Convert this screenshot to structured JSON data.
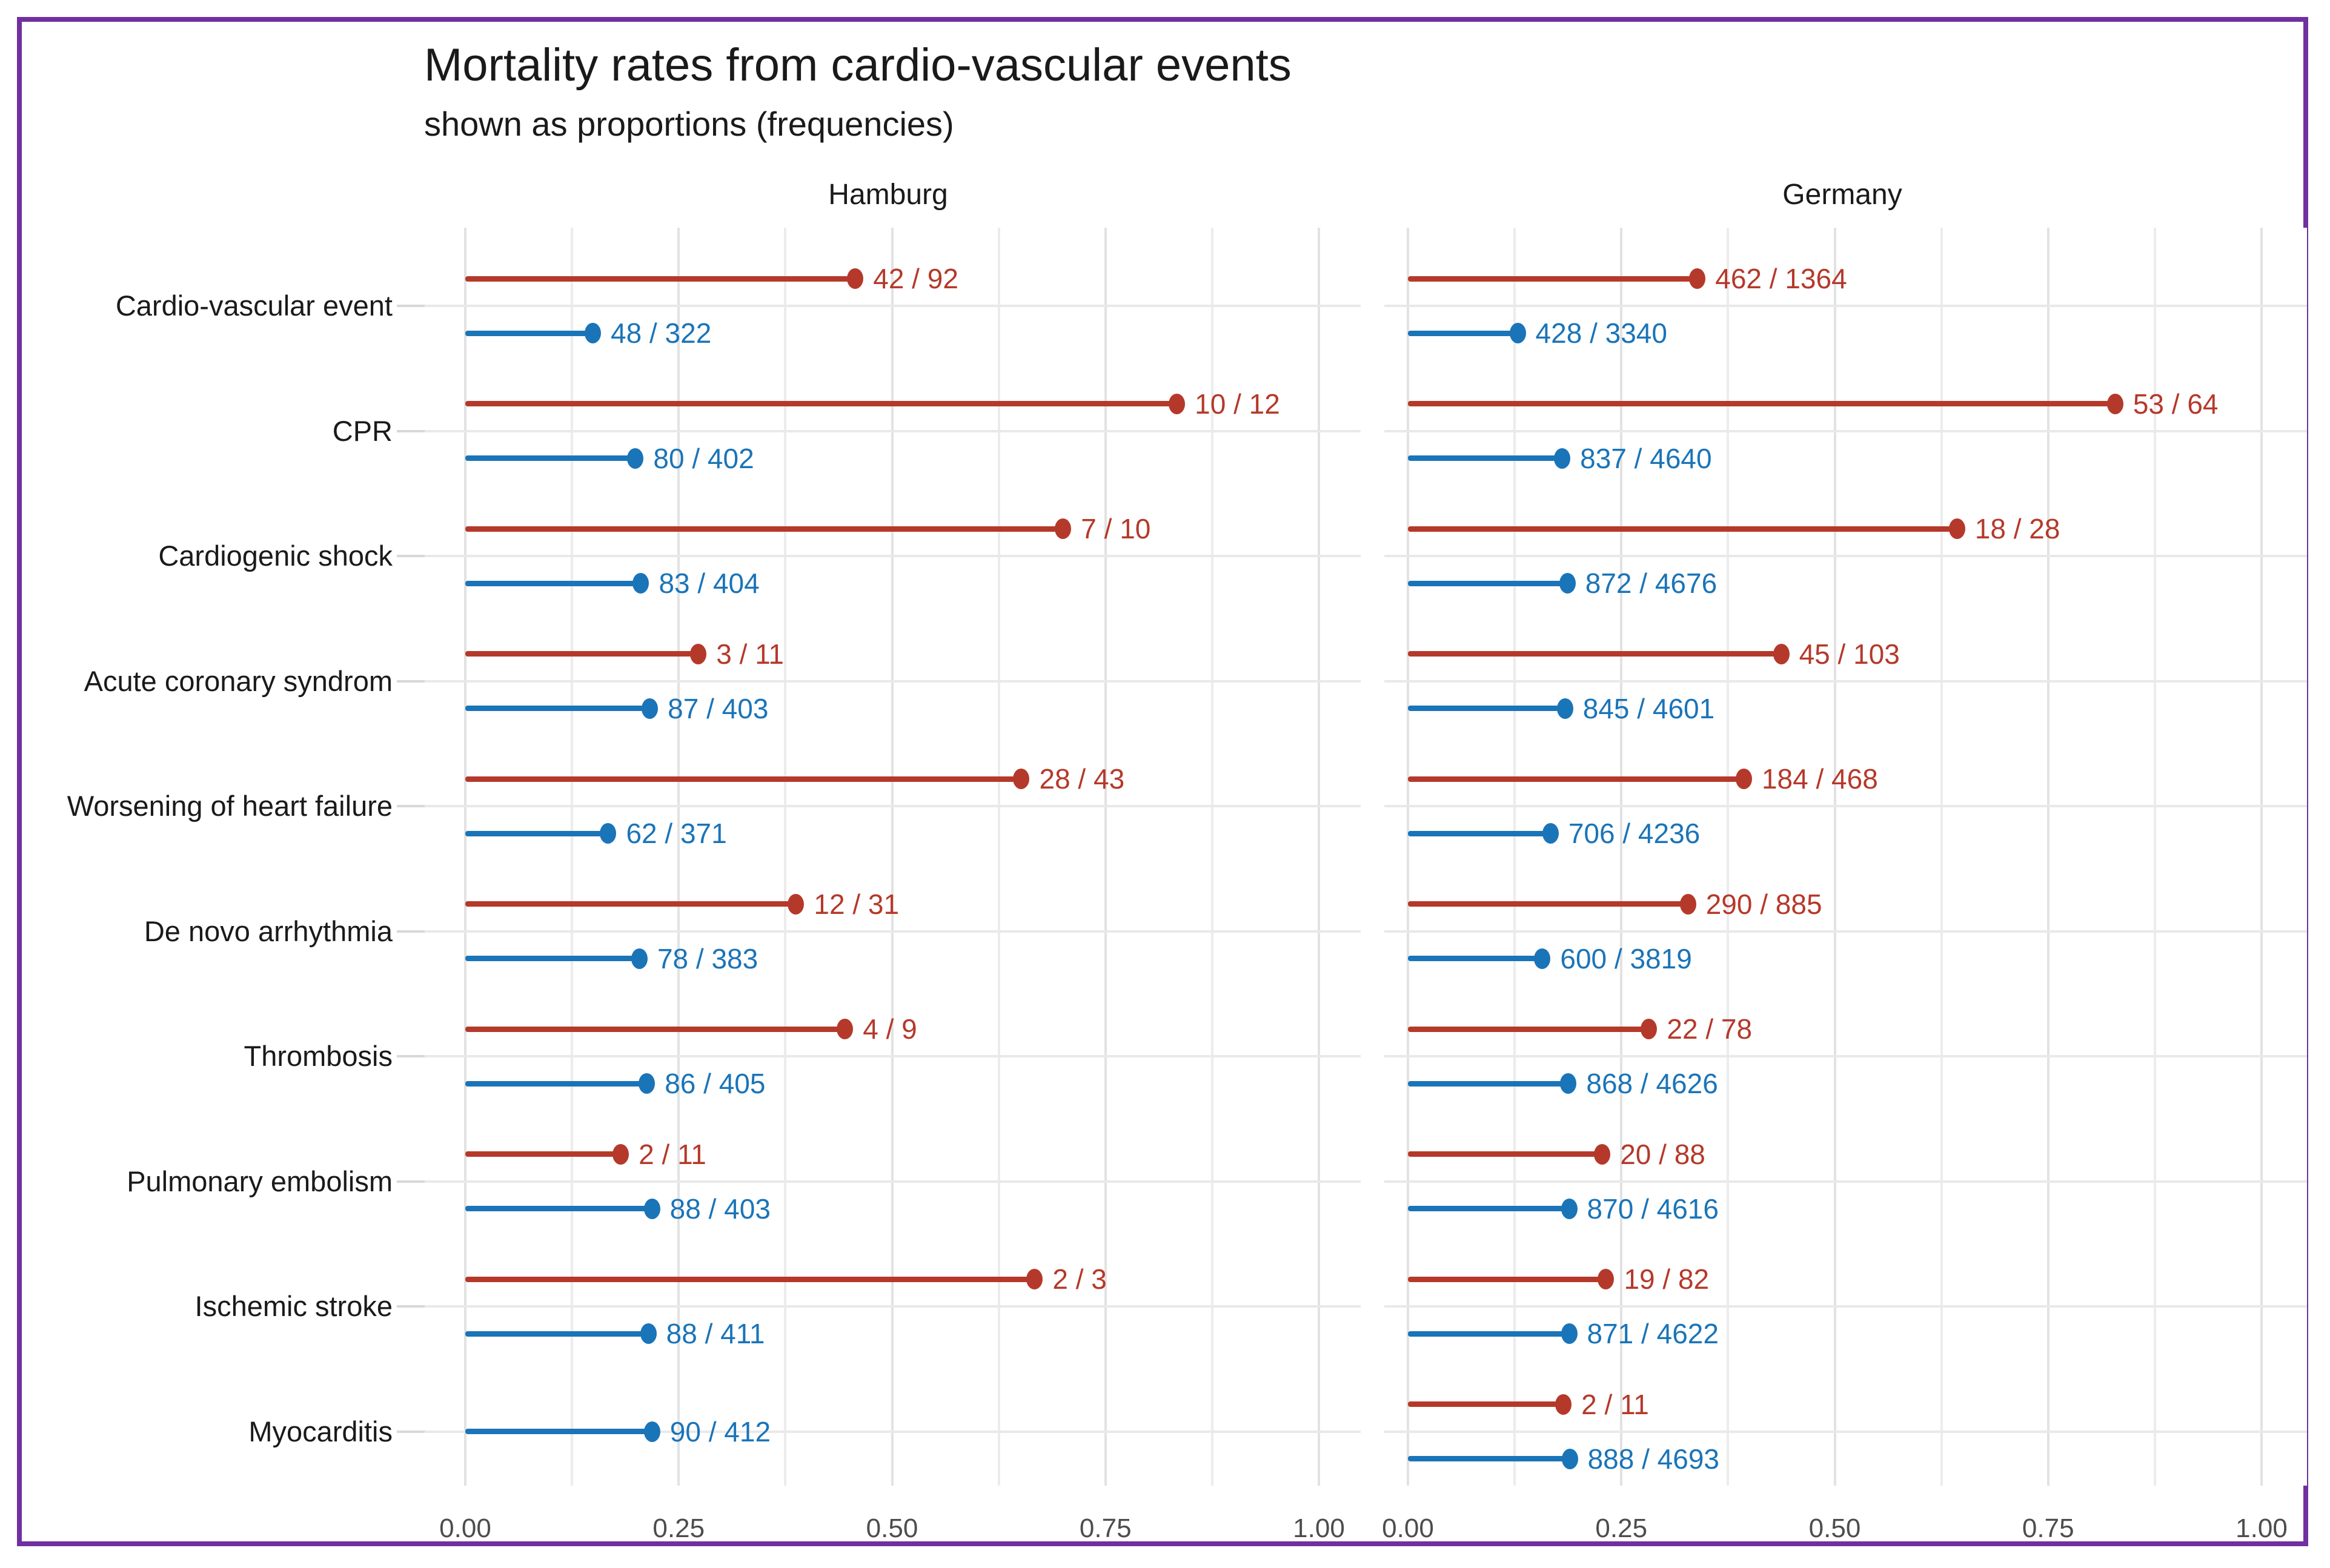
{
  "title": "Mortality rates from cardio-vascular events",
  "subtitle": "shown as proportions (frequencies)",
  "colors": {
    "red": "#b5392a",
    "blue": "#1a74b8",
    "frame_purple": "#7030a0",
    "axis_text_gray": "#4d4d4d",
    "text_black": "#1a1a1a"
  },
  "chart_data": {
    "type": "bar",
    "subtype": "horizontal-lollipop-dodged",
    "title": "Mortality rates from cardio-vascular events",
    "subtitle": "shown as proportions (frequencies)",
    "facets": [
      "Hamburg",
      "Germany"
    ],
    "legend_position": "none",
    "grid": true,
    "x_axis": {
      "range": [
        0,
        1
      ],
      "tick_values": [
        0,
        0.25,
        0.5,
        0.75,
        1
      ],
      "tick_labels": [
        "0.00",
        "0.25",
        "0.50",
        "0.75",
        "1.00"
      ],
      "minor_step": 0.125
    },
    "categories": [
      "Cardio-vascular event",
      "CPR",
      "Cardiogenic shock",
      "Acute coronary syndrom",
      "Worsening of heart failure",
      "De novo arrhythmia",
      "Thrombosis",
      "Pulmonary embolism",
      "Ischemic stroke",
      "Myocarditis"
    ],
    "panels": [
      {
        "facet": "Hamburg",
        "rows": [
          {
            "category": "Cardio-vascular event",
            "red": {
              "label": "42 / 92",
              "num": 42,
              "den": 92
            },
            "blue": {
              "label": "48 / 322",
              "num": 48,
              "den": 322
            }
          },
          {
            "category": "CPR",
            "red": {
              "label": "10 / 12",
              "num": 10,
              "den": 12
            },
            "blue": {
              "label": "80 / 402",
              "num": 80,
              "den": 402
            }
          },
          {
            "category": "Cardiogenic shock",
            "red": {
              "label": "7 / 10",
              "num": 7,
              "den": 10
            },
            "blue": {
              "label": "83 / 404",
              "num": 83,
              "den": 404
            }
          },
          {
            "category": "Acute coronary syndrom",
            "red": {
              "label": "3 / 11",
              "num": 3,
              "den": 11
            },
            "blue": {
              "label": "87 / 403",
              "num": 87,
              "den": 403
            }
          },
          {
            "category": "Worsening of heart failure",
            "red": {
              "label": "28 / 43",
              "num": 28,
              "den": 43
            },
            "blue": {
              "label": "62 / 371",
              "num": 62,
              "den": 371
            }
          },
          {
            "category": "De novo arrhythmia",
            "red": {
              "label": "12 / 31",
              "num": 12,
              "den": 31
            },
            "blue": {
              "label": "78 / 383",
              "num": 78,
              "den": 383
            }
          },
          {
            "category": "Thrombosis",
            "red": {
              "label": "4 / 9",
              "num": 4,
              "den": 9
            },
            "blue": {
              "label": "86 / 405",
              "num": 86,
              "den": 405
            }
          },
          {
            "category": "Pulmonary embolism",
            "red": {
              "label": "2 / 11",
              "num": 2,
              "den": 11
            },
            "blue": {
              "label": "88 / 403",
              "num": 88,
              "den": 403
            }
          },
          {
            "category": "Ischemic stroke",
            "red": {
              "label": "2 / 3",
              "num": 2,
              "den": 3
            },
            "blue": {
              "label": "88 / 411",
              "num": 88,
              "den": 411
            }
          },
          {
            "category": "Myocarditis",
            "red": null,
            "blue": {
              "label": "90 / 412",
              "num": 90,
              "den": 412
            }
          }
        ]
      },
      {
        "facet": "Germany",
        "rows": [
          {
            "category": "Cardio-vascular event",
            "red": {
              "label": "462 / 1364",
              "num": 462,
              "den": 1364
            },
            "blue": {
              "label": "428 / 3340",
              "num": 428,
              "den": 3340
            }
          },
          {
            "category": "CPR",
            "red": {
              "label": "53 / 64",
              "num": 53,
              "den": 64
            },
            "blue": {
              "label": "837 / 4640",
              "num": 837,
              "den": 4640
            }
          },
          {
            "category": "Cardiogenic shock",
            "red": {
              "label": "18 / 28",
              "num": 18,
              "den": 28
            },
            "blue": {
              "label": "872 / 4676",
              "num": 872,
              "den": 4676
            }
          },
          {
            "category": "Acute coronary syndrom",
            "red": {
              "label": "45 / 103",
              "num": 45,
              "den": 103
            },
            "blue": {
              "label": "845 / 4601",
              "num": 845,
              "den": 4601
            }
          },
          {
            "category": "Worsening of heart failure",
            "red": {
              "label": "184 / 468",
              "num": 184,
              "den": 468
            },
            "blue": {
              "label": "706 / 4236",
              "num": 706,
              "den": 4236
            }
          },
          {
            "category": "De novo arrhythmia",
            "red": {
              "label": "290 / 885",
              "num": 290,
              "den": 885
            },
            "blue": {
              "label": "600 / 3819",
              "num": 600,
              "den": 3819
            }
          },
          {
            "category": "Thrombosis",
            "red": {
              "label": "22 / 78",
              "num": 22,
              "den": 78
            },
            "blue": {
              "label": "868 / 4626",
              "num": 868,
              "den": 4626
            }
          },
          {
            "category": "Pulmonary embolism",
            "red": {
              "label": "20 / 88",
              "num": 20,
              "den": 88
            },
            "blue": {
              "label": "870 / 4616",
              "num": 870,
              "den": 4616
            }
          },
          {
            "category": "Ischemic stroke",
            "red": {
              "label": "19 / 82",
              "num": 19,
              "den": 82
            },
            "blue": {
              "label": "871 / 4622",
              "num": 871,
              "den": 4622
            }
          },
          {
            "category": "Myocarditis",
            "red": {
              "label": "2 / 11",
              "num": 2,
              "den": 11
            },
            "blue": {
              "label": "888 / 4693",
              "num": 888,
              "den": 4693
            }
          }
        ]
      }
    ]
  }
}
